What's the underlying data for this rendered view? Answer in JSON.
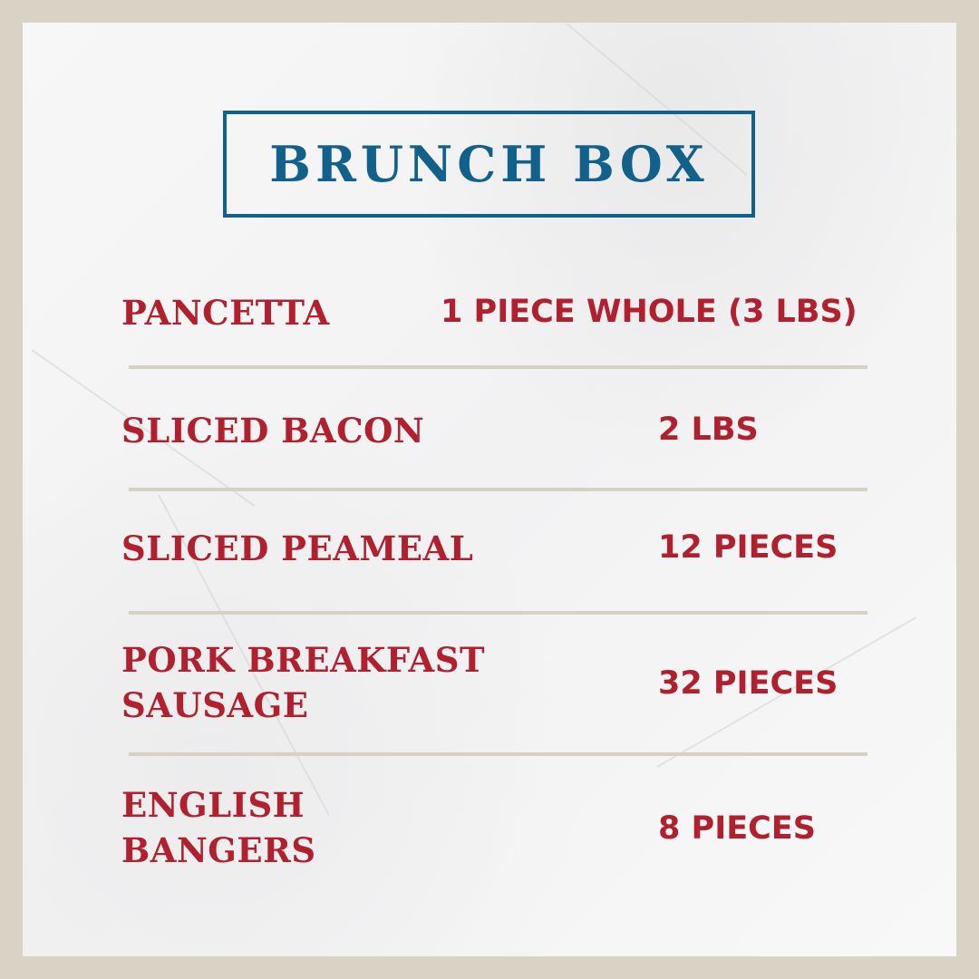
{
  "title": "BRUNCH BOX",
  "colors": {
    "title": "#12618a",
    "items": "#b0202e",
    "frame": "#d9d3c6",
    "divider": "#d6d1c3"
  },
  "items": [
    {
      "name": [
        "PANCETTA"
      ],
      "quantity": "1 PIECE WHOLE (3 LBS)"
    },
    {
      "name": [
        "SLICED BACON"
      ],
      "quantity": "2 LBS"
    },
    {
      "name": [
        "SLICED PEAMEAL"
      ],
      "quantity": "12 PIECES"
    },
    {
      "name": [
        "PORK BREAKFAST",
        "SAUSAGE"
      ],
      "quantity": "32 PIECES"
    },
    {
      "name": [
        "ENGLISH",
        "BANGERS"
      ],
      "quantity": "8 PIECES"
    }
  ]
}
